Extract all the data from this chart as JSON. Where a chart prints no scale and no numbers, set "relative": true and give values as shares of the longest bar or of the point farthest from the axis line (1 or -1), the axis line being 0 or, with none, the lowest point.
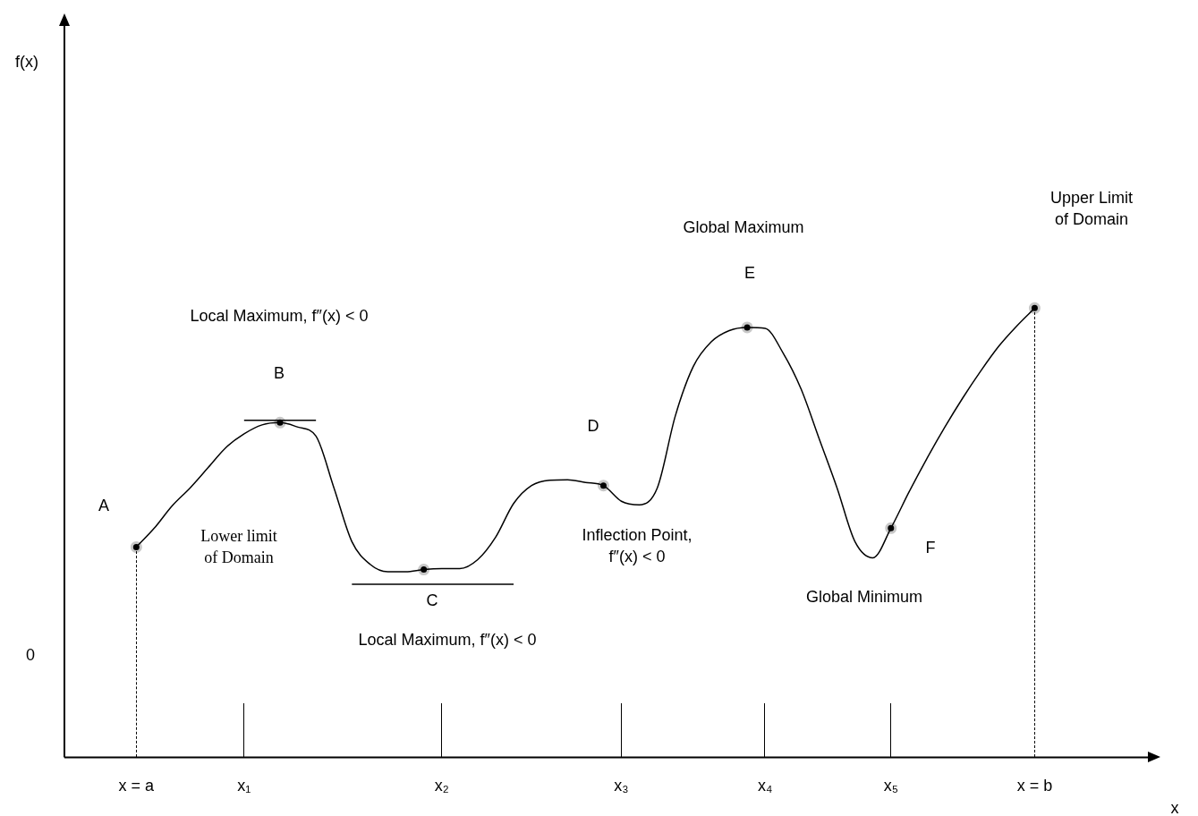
{
  "chart_data": {
    "type": "line",
    "relative": true,
    "xlabel": "x",
    "categories": [
      null,
      null,
      null,
      null,
      "x = a",
      null,
      null,
      null,
      null,
      null,
      "x₁",
      null,
      null,
      null,
      null,
      null,
      null,
      null,
      null,
      null,
      null,
      "x₂",
      null,
      null,
      null,
      null,
      null,
      null,
      null,
      null,
      null,
      "x₃",
      null,
      null,
      null,
      null,
      null,
      null,
      null,
      "x₄",
      null,
      null,
      null,
      null,
      null,
      null,
      "x₅",
      null,
      null,
      null,
      null,
      null,
      null,
      null,
      "x = b",
      null,
      null,
      null,
      null,
      null,
      null,
      null
    ],
    "series": [
      {
        "color": "#000000",
        "marker": "none",
        "values": [
          null,
          null,
          null,
          null,
          0.468,
          0.51,
          0.56,
          0.6,
          0.645,
          0.69,
          0.72,
          0.74,
          0.745,
          0.735,
          0.715,
          0.6,
          0.48,
          0.43,
          0.413,
          0.413,
          0.418,
          0.42,
          0.42,
          0.44,
          0.49,
          0.565,
          0.605,
          0.617,
          0.618,
          0.612,
          0.605,
          0.57,
          0.562,
          0.6,
          0.76,
          0.87,
          0.925,
          0.95,
          0.957,
          0.955,
          0.9,
          0.82,
          0.71,
          0.6,
          0.48,
          0.444,
          0.51,
          0.59,
          0.665,
          0.735,
          0.8,
          0.86,
          0.915,
          0.96,
          1.0,
          null,
          null,
          null,
          null,
          null,
          null,
          null
        ]
      },
      {
        "color": "#000000",
        "marker": "none",
        "values": [
          null,
          null,
          null,
          null,
          null,
          null,
          null,
          null,
          null,
          null,
          0.75,
          0.75,
          0.75,
          0.75,
          0.75,
          null,
          null,
          null,
          null,
          null,
          null,
          null,
          null,
          null,
          null,
          null,
          null,
          null,
          null,
          null,
          null,
          null,
          null,
          null,
          null,
          null,
          null,
          null,
          null,
          null,
          null,
          null,
          null,
          null,
          null,
          null,
          null,
          null,
          null,
          null,
          null,
          null,
          null,
          null,
          null,
          null,
          null,
          null,
          null,
          null,
          null,
          null
        ]
      },
      {
        "color": "#000000",
        "marker": "none",
        "values": [
          null,
          null,
          null,
          null,
          null,
          null,
          null,
          null,
          null,
          null,
          null,
          null,
          null,
          null,
          null,
          null,
          0.385,
          0.385,
          0.385,
          0.385,
          0.385,
          0.385,
          0.385,
          0.385,
          0.385,
          0.385,
          null,
          null,
          null,
          null,
          null,
          null,
          null,
          null,
          null,
          null,
          null,
          null,
          null,
          null,
          null,
          null,
          null,
          null,
          null,
          null,
          null,
          null,
          null,
          null,
          null,
          null,
          null,
          null,
          null,
          null,
          null,
          null,
          null,
          null,
          null,
          null
        ]
      },
      {
        "type": "scatter",
        "color": "#000000",
        "marker": "circle",
        "values": [
          null,
          null,
          null,
          null,
          0.468,
          null,
          null,
          null,
          null,
          null,
          null,
          null,
          0.745,
          null,
          null,
          null,
          null,
          null,
          null,
          null,
          0.418,
          null,
          null,
          null,
          null,
          null,
          null,
          null,
          null,
          null,
          0.605,
          null,
          null,
          null,
          null,
          null,
          null,
          null,
          0.957,
          null,
          null,
          null,
          null,
          null,
          null,
          null,
          0.51,
          null,
          null,
          null,
          null,
          null,
          null,
          null,
          1.0,
          null,
          null,
          null,
          null,
          null,
          null,
          null
        ]
      }
    ],
    "annotations": [
      "0",
      "A",
      "B",
      "Local Maximum, f″(x) < 0",
      "Lower limit\nof Domain",
      "C",
      "Local Maximum, f″(x) < 0",
      "D",
      "Inflection Point,\nf″(x) < 0",
      "E",
      "Global Maximum",
      "F",
      "Global Minimum",
      "Upper Limit\nof Domain",
      "f(x)"
    ]
  }
}
